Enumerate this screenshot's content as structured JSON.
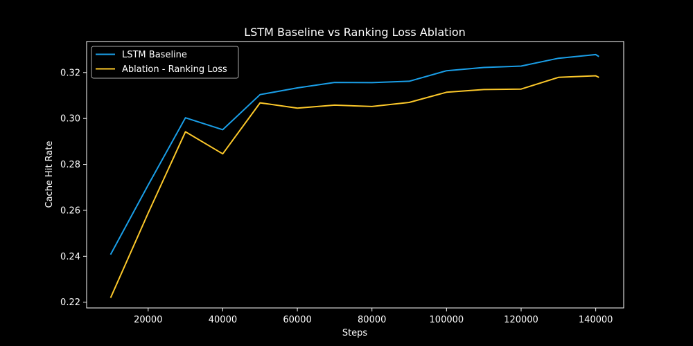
{
  "chart_data": {
    "type": "line",
    "title": "LSTM Baseline vs Ranking Loss Ablation",
    "xlabel": "Steps",
    "ylabel": "Cache Hit Rate",
    "xlim": [
      3500,
      147500
    ],
    "ylim": [
      0.2175,
      0.3335
    ],
    "xticks": [
      20000,
      40000,
      60000,
      80000,
      100000,
      120000,
      140000
    ],
    "xtick_labels": [
      "20000",
      "40000",
      "60000",
      "80000",
      "100000",
      "120000",
      "140000"
    ],
    "yticks": [
      0.22,
      0.24,
      0.26,
      0.28,
      0.3,
      0.32
    ],
    "ytick_labels": [
      "0.22",
      "0.24",
      "0.26",
      "0.28",
      "0.30",
      "0.32"
    ],
    "grid": false,
    "legend_position": "top-left",
    "background": "#000000",
    "series": [
      {
        "name": "LSTM Baseline",
        "color": "#1a9fe8",
        "x": [
          10000,
          20000,
          30000,
          40000,
          50000,
          60000,
          70000,
          80000,
          90000,
          100000,
          110000,
          120000,
          130000,
          140000,
          140700
        ],
        "y": [
          0.241,
          0.271,
          0.3003,
          0.2951,
          0.3104,
          0.3133,
          0.3157,
          0.3156,
          0.3162,
          0.3208,
          0.3222,
          0.3228,
          0.3262,
          0.3278,
          0.3271
        ]
      },
      {
        "name": "Ablation - Ranking Loss",
        "color": "#fcc82a",
        "x": [
          10000,
          20000,
          30000,
          40000,
          50000,
          60000,
          70000,
          80000,
          90000,
          100000,
          110000,
          120000,
          130000,
          140000,
          140700
        ],
        "y": [
          0.2222,
          0.2588,
          0.2942,
          0.2846,
          0.3068,
          0.3045,
          0.3058,
          0.3052,
          0.307,
          0.3114,
          0.3126,
          0.3128,
          0.3179,
          0.3186,
          0.318
        ]
      }
    ]
  }
}
